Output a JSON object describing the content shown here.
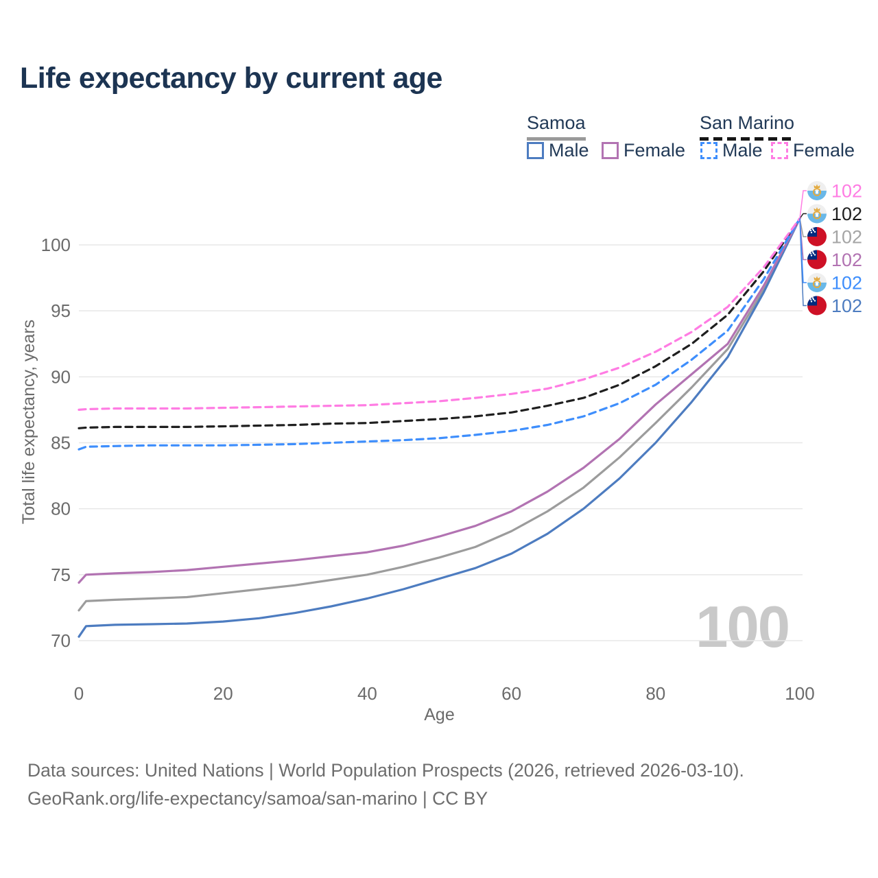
{
  "title": "Life expectancy by current age",
  "legend": {
    "groups": [
      {
        "label": "Samoa",
        "style": "solid",
        "underline_color": "#9a9a9a"
      },
      {
        "label": "San Marino",
        "style": "dashed",
        "underline_color": "#161616"
      }
    ],
    "items": [
      {
        "label": "Male",
        "group": "Samoa",
        "color": "#4d7cc0",
        "dashed": false
      },
      {
        "label": "Female",
        "group": "Samoa",
        "color": "#b273b2",
        "dashed": false
      },
      {
        "label": "Male",
        "group": "San Marino",
        "color": "#3e8efc",
        "dashed": true
      },
      {
        "label": "Female",
        "group": "San Marino",
        "color": "#ff7ce3",
        "dashed": true
      }
    ]
  },
  "watermark": "100",
  "footer": {
    "line1": "Data sources: United Nations | World Population Prospects (2026, retrieved 2026-03-10).",
    "line2": "GeoRank.org/life-expectancy/samoa/san-marino | CC BY"
  },
  "chart_data": {
    "type": "line",
    "title": "Life expectancy by current age",
    "xlabel": "Age",
    "ylabel": "Total life expectancy, years",
    "xlim": [
      0,
      100
    ],
    "ylim": [
      69.5,
      103
    ],
    "x_ticks": [
      0,
      20,
      40,
      60,
      80,
      100
    ],
    "y_ticks": [
      70,
      75,
      80,
      85,
      90,
      95,
      100
    ],
    "grid": "horizontal-only",
    "legend_position": "top-right",
    "x": [
      0,
      1,
      5,
      10,
      15,
      20,
      25,
      30,
      35,
      40,
      45,
      50,
      55,
      60,
      65,
      70,
      75,
      80,
      85,
      90,
      95,
      100
    ],
    "series": [
      {
        "name": "Samoa Both sexes",
        "country": "Samoa",
        "sex": "both",
        "color": "#9c9c9c",
        "dashed": false,
        "flag": "samoa",
        "end_label": "102",
        "label_color": "#a5a5a5",
        "label_row": 2,
        "values": [
          72.3,
          73.0,
          73.1,
          73.2,
          73.3,
          73.6,
          73.9,
          74.2,
          74.6,
          75.0,
          75.6,
          76.3,
          77.1,
          78.3,
          79.8,
          81.6,
          83.9,
          86.5,
          89.2,
          92.1,
          96.6,
          102
        ]
      },
      {
        "name": "Samoa Male",
        "country": "Samoa",
        "sex": "male",
        "color": "#4d7cc0",
        "dashed": false,
        "flag": "samoa",
        "end_label": "102",
        "label_color": "#4d7cc0",
        "label_row": 5,
        "values": [
          70.3,
          71.1,
          71.2,
          71.25,
          71.3,
          71.45,
          71.7,
          72.1,
          72.6,
          73.2,
          73.9,
          74.7,
          75.5,
          76.6,
          78.1,
          80.0,
          82.3,
          85.0,
          88.1,
          91.5,
          96.4,
          102
        ]
      },
      {
        "name": "Samoa Female",
        "country": "Samoa",
        "sex": "female",
        "color": "#b273b2",
        "dashed": false,
        "flag": "samoa",
        "end_label": "102",
        "label_color": "#b273b2",
        "label_row": 3,
        "values": [
          74.4,
          75.0,
          75.1,
          75.2,
          75.35,
          75.6,
          75.85,
          76.1,
          76.4,
          76.7,
          77.2,
          77.9,
          78.7,
          79.8,
          81.3,
          83.1,
          85.3,
          87.9,
          90.2,
          92.5,
          96.9,
          102
        ]
      },
      {
        "name": "San Marino Both sexes",
        "country": "San Marino",
        "sex": "both",
        "color": "#1f1f1f",
        "dashed": true,
        "flag": "san-marino",
        "end_label": "102",
        "label_color": "#1f1f1f",
        "label_row": 1,
        "values": [
          86.1,
          86.15,
          86.2,
          86.2,
          86.2,
          86.25,
          86.3,
          86.35,
          86.45,
          86.5,
          86.65,
          86.8,
          87.0,
          87.3,
          87.8,
          88.4,
          89.4,
          90.8,
          92.5,
          94.7,
          98.0,
          102
        ]
      },
      {
        "name": "San Marino Male",
        "country": "San Marino",
        "sex": "male",
        "color": "#3e8efc",
        "dashed": true,
        "flag": "san-marino",
        "end_label": "102",
        "label_color": "#3e8efc",
        "label_row": 4,
        "values": [
          84.5,
          84.7,
          84.75,
          84.8,
          84.8,
          84.8,
          84.85,
          84.9,
          85.0,
          85.1,
          85.2,
          85.35,
          85.6,
          85.9,
          86.35,
          87.0,
          88.0,
          89.4,
          91.3,
          93.5,
          97.4,
          102
        ]
      },
      {
        "name": "San Marino Female",
        "country": "San Marino",
        "sex": "female",
        "color": "#ff7ce3",
        "dashed": true,
        "flag": "san-marino",
        "end_label": "102",
        "label_color": "#ff7ce3",
        "label_row": 0,
        "values": [
          87.5,
          87.55,
          87.6,
          87.6,
          87.6,
          87.65,
          87.7,
          87.75,
          87.8,
          87.85,
          88.0,
          88.15,
          88.4,
          88.7,
          89.1,
          89.8,
          90.7,
          91.9,
          93.4,
          95.3,
          98.3,
          102
        ]
      }
    ]
  }
}
